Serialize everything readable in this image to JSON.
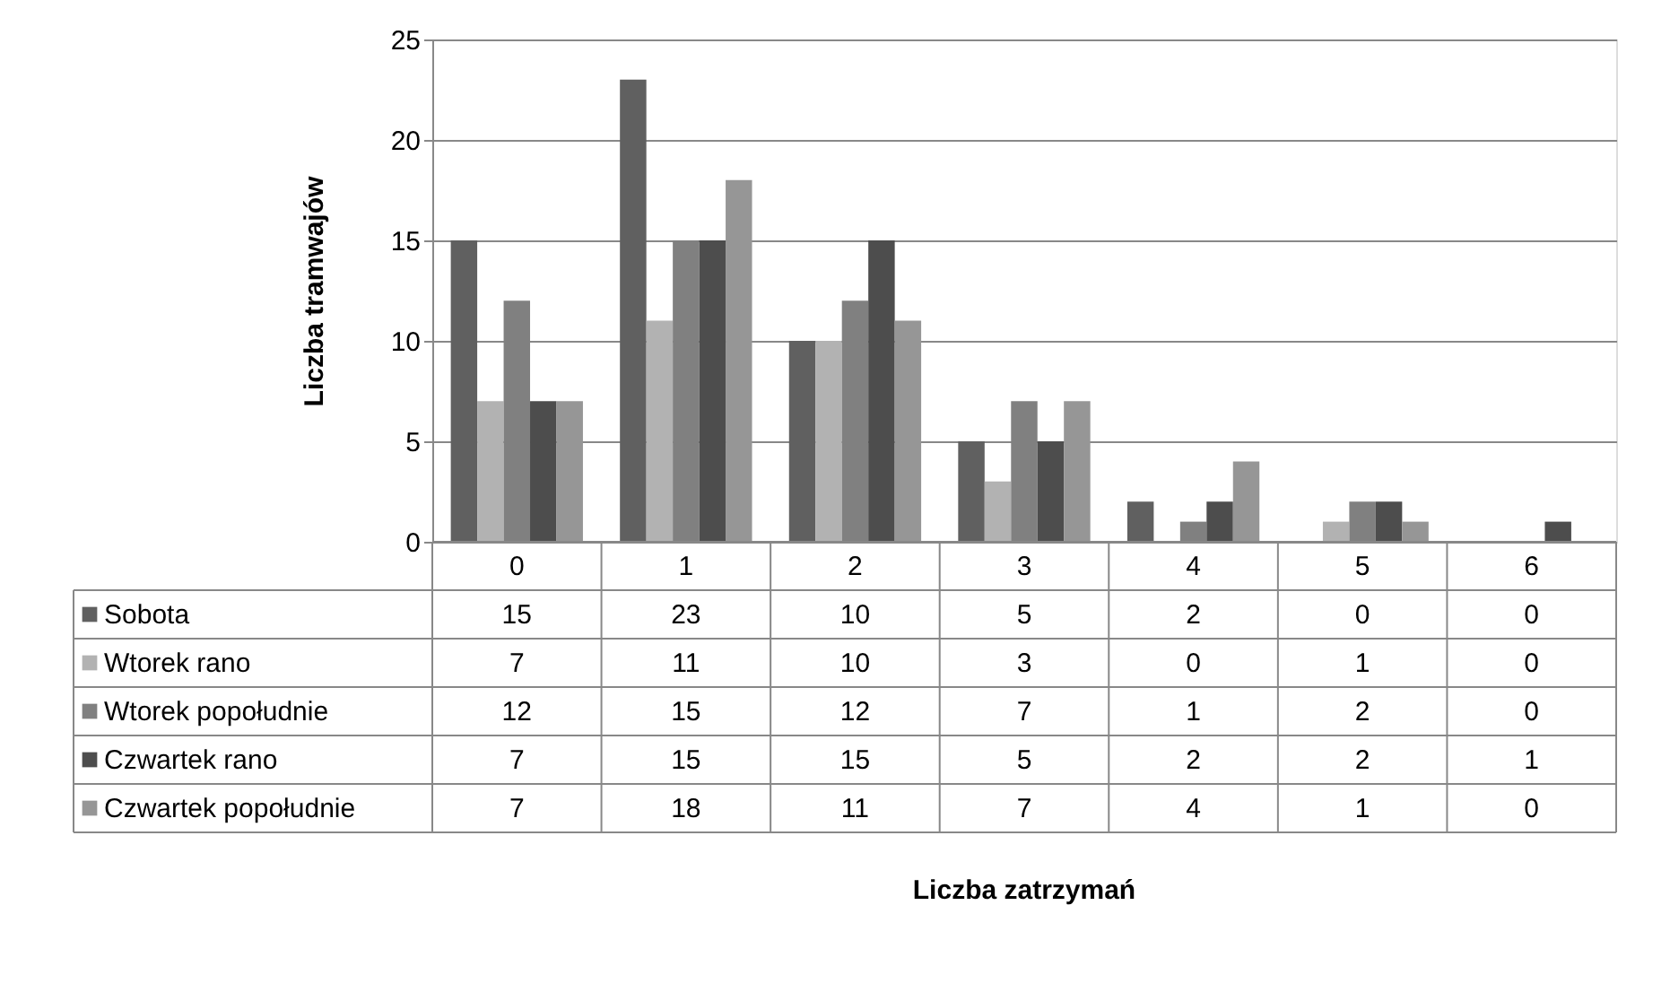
{
  "chart_data": {
    "type": "bar",
    "annotations": [
      "Liczba zatrzymań"
    ],
    "ylabel": "Liczba tramwajów",
    "categories": [
      "0",
      "1",
      "2",
      "3",
      "4",
      "5",
      "6"
    ],
    "series": [
      {
        "name": "Sobota",
        "color": "#606060",
        "values": [
          15,
          23,
          10,
          5,
          2,
          0,
          0
        ]
      },
      {
        "name": "Wtorek rano",
        "color": "#b2b2b2",
        "values": [
          7,
          11,
          10,
          3,
          0,
          1,
          0
        ]
      },
      {
        "name": "Wtorek popołudnie",
        "color": "#808080",
        "values": [
          12,
          15,
          12,
          7,
          1,
          2,
          0
        ]
      },
      {
        "name": "Czwartek rano",
        "color": "#4d4d4d",
        "values": [
          7,
          15,
          15,
          5,
          2,
          2,
          1
        ]
      },
      {
        "name": "Czwartek popołudnie",
        "color": "#969696",
        "values": [
          7,
          18,
          11,
          7,
          4,
          1,
          0
        ]
      }
    ],
    "ylim": [
      0,
      25
    ],
    "yticks": [
      0,
      5,
      10,
      15,
      20,
      25
    ],
    "grid": "y",
    "legend": "bottom",
    "data_labels": true
  }
}
